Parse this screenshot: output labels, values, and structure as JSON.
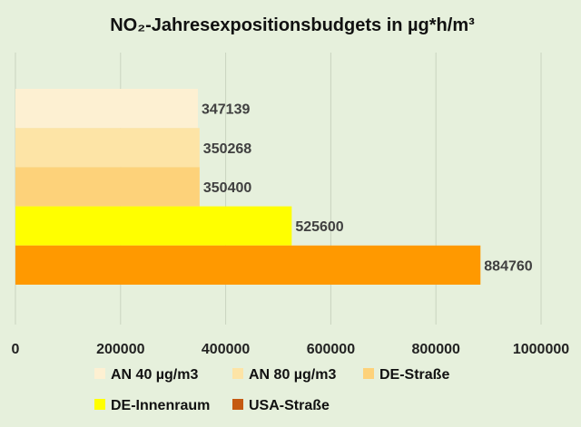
{
  "chart_data": {
    "type": "bar",
    "orientation": "horizontal",
    "title": "NO₂-Jahresexpositionsbudgets  in µg*h/m³",
    "xlabel": "",
    "ylabel": "",
    "xlim": [
      0,
      1000000
    ],
    "xticks": [
      0,
      200000,
      400000,
      600000,
      800000,
      1000000
    ],
    "grid": true,
    "legend_position": "bottom",
    "series": [
      {
        "name": "AN 40 µg/m3",
        "value": 347139,
        "color": "#fdf0d2"
      },
      {
        "name": "AN 80 µg/m3",
        "value": 350268,
        "color": "#fde4a6"
      },
      {
        "name": "DE-Straße",
        "value": 350400,
        "color": "#fdd27a"
      },
      {
        "name": "DE-Innenraum",
        "value": 525600,
        "color": "#ffff00"
      },
      {
        "name": "USA-Straße",
        "value": 884760,
        "color": "#ff9900",
        "legend_color": "#c55a11"
      }
    ]
  }
}
